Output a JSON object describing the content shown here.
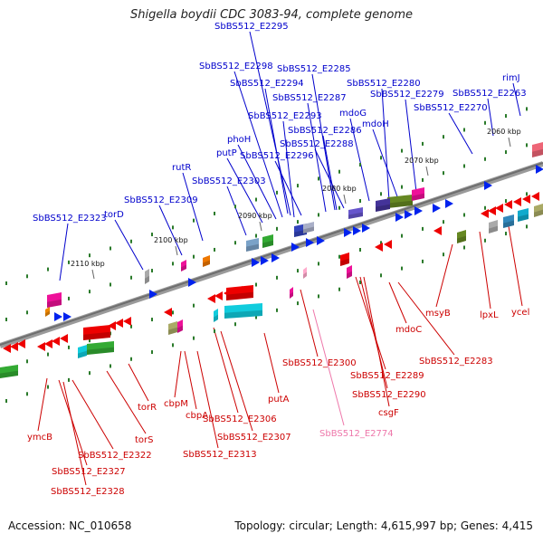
{
  "title": "Shigella boydii CDC 3083-94, complete genome",
  "footer": {
    "accession": "Accession: NC_010658",
    "summary": "Topology: circular; Length: 4,615,997 bp; Genes: 4,415"
  },
  "scale_labels": [
    "2060 kbp",
    "2070 kbp",
    "2080 kbp",
    "2090 kbp",
    "2100 kbp",
    "2110 kbp"
  ],
  "top_strand_genes": [
    "SbBS512_E2295",
    "SbBS512_E2298",
    "SbBS512_E2285",
    "SbBS512_E2294",
    "SbBS512_E2280",
    "rimJ",
    "SbBS512_E2287",
    "SbBS512_E2279",
    "SbBS512_E2263",
    "mdoG",
    "SbBS512_E2293",
    "SbBS512_E2270",
    "mdoH",
    "SbBS512_E2286",
    "phoH",
    "SbBS512_E2288",
    "putP",
    "SbBS512_E2296",
    "rutR",
    "SbBS512_E2303",
    "SbBS512_E2309",
    "torD",
    "SbBS512_E2323"
  ],
  "bottom_strand_genes": [
    "SbBS512_E2300",
    "msyB",
    "lpxL",
    "ycel",
    "mdoC",
    "SbBS512_E2283",
    "SbBS512_E2289",
    "SbBS512_E2290",
    "putA",
    "csgF",
    "torR",
    "cbpM",
    "cbpA",
    "SbBS512_E2306",
    "SbBS512_E2307",
    "ymcB",
    "torS",
    "SbBS512_E2313",
    "SbBS512_E2322",
    "SbBS512_E2327",
    "SbBS512_E2328"
  ],
  "highlighted_gene": "SbBS512_E2774",
  "colors": {
    "top_labels": "#0000cc",
    "bottom_labels": "#cc0000",
    "highlight_label": "#ee77aa",
    "top_arrows": "#0022ee",
    "bottom_arrows": "#ee0000",
    "backbone": "#888888"
  }
}
